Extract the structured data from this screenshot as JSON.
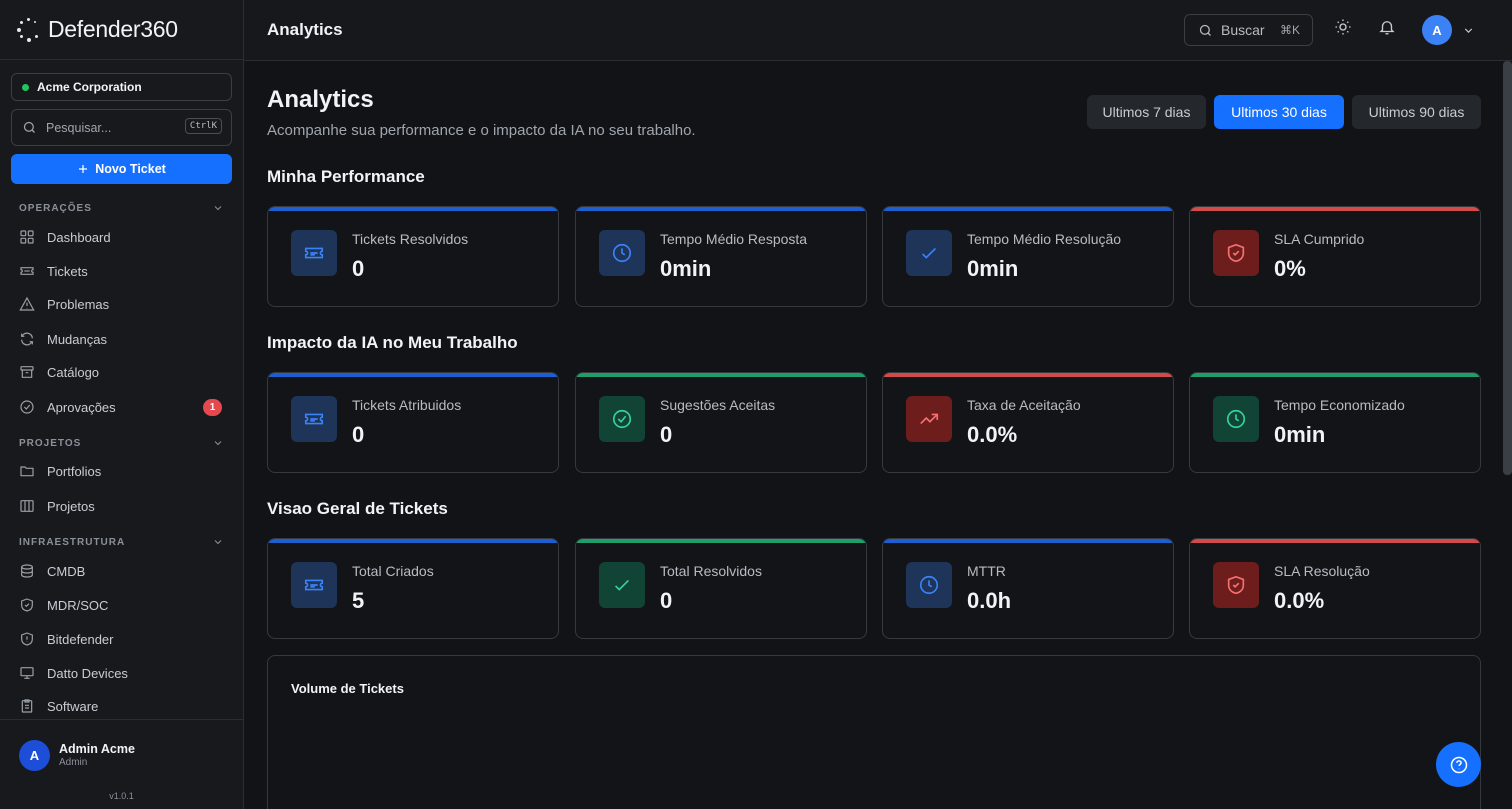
{
  "brand": {
    "name": "Defender360"
  },
  "sidebar": {
    "org": "Acme Corporation",
    "search_placeholder": "Pesquisar...",
    "search_kbd": "CtrlK",
    "new_ticket": "Novo Ticket",
    "sections": [
      {
        "title": "OPERAÇÕES",
        "items": [
          {
            "label": "Dashboard",
            "icon": "dashboard-icon"
          },
          {
            "label": "Tickets",
            "icon": "ticket-icon"
          },
          {
            "label": "Problemas",
            "icon": "warning-icon"
          },
          {
            "label": "Mudanças",
            "icon": "refresh-icon"
          },
          {
            "label": "Catálogo",
            "icon": "archive-icon"
          },
          {
            "label": "Aprovações",
            "icon": "check-circle-icon",
            "badge": "1"
          }
        ]
      },
      {
        "title": "PROJETOS",
        "items": [
          {
            "label": "Portfolios",
            "icon": "folder-icon"
          },
          {
            "label": "Projetos",
            "icon": "columns-icon"
          }
        ]
      },
      {
        "title": "INFRAESTRUTURA",
        "items": [
          {
            "label": "CMDB",
            "icon": "database-icon"
          },
          {
            "label": "MDR/SOC",
            "icon": "shield-check-icon"
          },
          {
            "label": "Bitdefender",
            "icon": "shield-icon"
          },
          {
            "label": "Datto Devices",
            "icon": "monitor-icon"
          },
          {
            "label": "Software",
            "icon": "clipboard-icon"
          }
        ]
      }
    ],
    "user": {
      "initial": "A",
      "name": "Admin Acme",
      "role": "Admin"
    },
    "version": "v1.0.1"
  },
  "topbar": {
    "title": "Analytics",
    "search_label": "Buscar",
    "search_shortcut": "⌘K",
    "avatar_initial": "A"
  },
  "page": {
    "title": "Analytics",
    "subtitle": "Acompanhe sua performance e o impacto da IA no seu trabalho.",
    "ranges": [
      "Ultimos 7 dias",
      "Ultimos 30 dias",
      "Ultimos 90 dias"
    ],
    "active_range": "Ultimos 30 dias"
  },
  "sections": [
    {
      "title": "Minha Performance",
      "cards": [
        {
          "label": "Tickets Resolvidos",
          "value": "0",
          "color": "blue",
          "icon": "ticket-icon"
        },
        {
          "label": "Tempo Médio Resposta",
          "value": "0min",
          "color": "blue",
          "icon": "clock-icon"
        },
        {
          "label": "Tempo Médio Resolução",
          "value": "0min",
          "color": "blue",
          "icon": "check-icon"
        },
        {
          "label": "SLA Cumprido",
          "value": "0%",
          "color": "red",
          "icon": "shield-check-icon"
        }
      ]
    },
    {
      "title": "Impacto da IA no Meu Trabalho",
      "cards": [
        {
          "label": "Tickets Atribuidos",
          "value": "0",
          "color": "blue",
          "icon": "ticket-icon"
        },
        {
          "label": "Sugestões Aceitas",
          "value": "0",
          "color": "green",
          "icon": "check-circle-icon"
        },
        {
          "label": "Taxa de Aceitação",
          "value": "0.0%",
          "color": "red",
          "icon": "trending-up-icon"
        },
        {
          "label": "Tempo Economizado",
          "value": "0min",
          "color": "green",
          "icon": "clock-icon"
        }
      ]
    },
    {
      "title": "Visao Geral de Tickets",
      "cards": [
        {
          "label": "Total Criados",
          "value": "5",
          "color": "blue",
          "icon": "ticket-icon"
        },
        {
          "label": "Total Resolvidos",
          "value": "0",
          "color": "green",
          "icon": "check-icon"
        },
        {
          "label": "MTTR",
          "value": "0.0h",
          "color": "blue",
          "icon": "clock-icon"
        },
        {
          "label": "SLA Resolução",
          "value": "0.0%",
          "color": "red",
          "icon": "shield-check-icon"
        }
      ]
    }
  ],
  "chart": {
    "title": "Volume de Tickets"
  },
  "colors": {
    "accent": "#1670ff",
    "blue": "#3b82f6",
    "green": "#22c55e",
    "red": "#ef4444"
  }
}
